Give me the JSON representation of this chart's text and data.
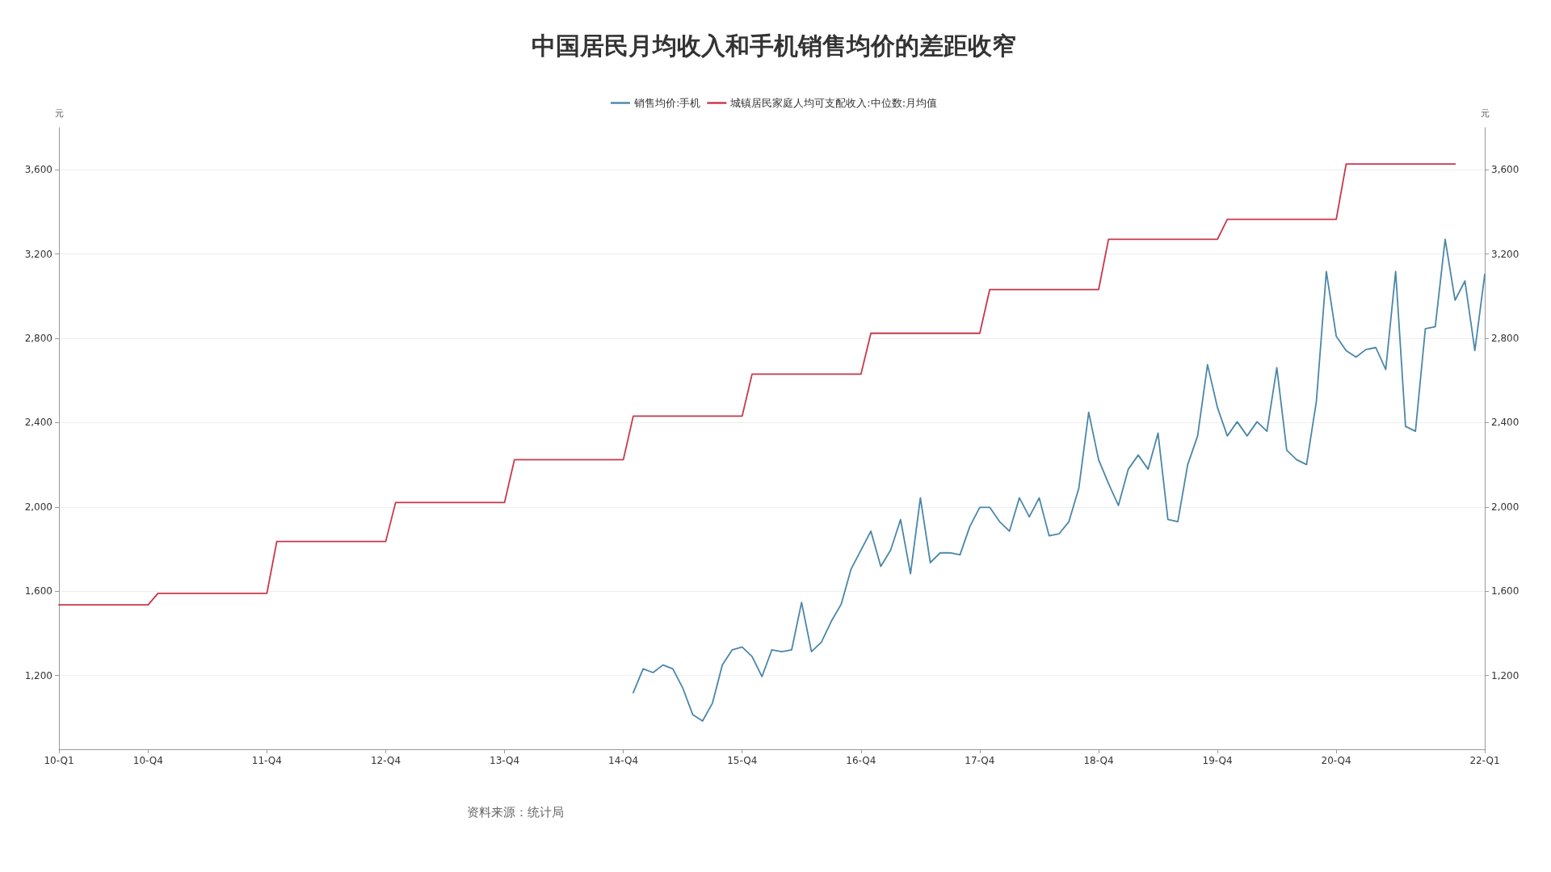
{
  "chart_data": {
    "type": "line",
    "title": "中国居民月均收入和手机销售均价的差距收窄",
    "ylabel": "元",
    "y2label": "元",
    "categories": [
      "10-Q1",
      null,
      null,
      null,
      null,
      null,
      null,
      null,
      null,
      "10-Q4",
      null,
      null,
      null,
      null,
      null,
      null,
      null,
      null,
      null,
      null,
      null,
      "11-Q4",
      null,
      null,
      null,
      null,
      null,
      null,
      null,
      null,
      null,
      null,
      null,
      "12-Q4",
      null,
      null,
      null,
      null,
      null,
      null,
      null,
      null,
      null,
      null,
      null,
      "13-Q4",
      null,
      null,
      null,
      null,
      null,
      null,
      null,
      null,
      null,
      null,
      null,
      "14-Q4",
      null,
      null,
      null,
      null,
      null,
      null,
      null,
      null,
      null,
      null,
      null,
      "15-Q4",
      null,
      null,
      null,
      null,
      null,
      null,
      null,
      null,
      null,
      null,
      null,
      "16-Q4",
      null,
      null,
      null,
      null,
      null,
      null,
      null,
      null,
      null,
      null,
      null,
      "17-Q4",
      null,
      null,
      null,
      null,
      null,
      null,
      null,
      null,
      null,
      null,
      null,
      "18-Q4",
      null,
      null,
      null,
      null,
      null,
      null,
      null,
      null,
      null,
      null,
      null,
      "19-Q4",
      null,
      null,
      null,
      null,
      null,
      null,
      null,
      null,
      null,
      null,
      null,
      "20-Q4",
      null,
      null,
      null,
      null,
      null,
      null,
      null,
      null,
      null,
      null,
      null,
      null,
      null,
      null,
      "22-Q1"
    ],
    "ylim": [
      850,
      3800
    ],
    "yticks": [
      {
        "value": 1200,
        "label": "1,200"
      },
      {
        "value": 1600,
        "label": "1,600"
      },
      {
        "value": 2000,
        "label": "2,000"
      },
      {
        "value": 2400,
        "label": "2,400"
      },
      {
        "value": 2800,
        "label": "2,800"
      },
      {
        "value": 3200,
        "label": "3,200"
      },
      {
        "value": 3600,
        "label": "3,600"
      }
    ],
    "y2lim": [
      850,
      3800
    ],
    "y2ticks": [
      {
        "value": 1200,
        "label": "1,200"
      },
      {
        "value": 1600,
        "label": "1,600"
      },
      {
        "value": 2000,
        "label": "2,000"
      },
      {
        "value": 2400,
        "label": "2,400"
      },
      {
        "value": 2800,
        "label": "2,800"
      },
      {
        "value": 3200,
        "label": "3,200"
      },
      {
        "value": 3600,
        "label": "3,600"
      }
    ],
    "grid": "y",
    "legend": "top",
    "marker": "none",
    "line_style": "solid",
    "annotations": [
      "资料来源：统计局"
    ],
    "series": [
      {
        "name": "销售均价:手机",
        "color": "#4a87a8",
        "values": [
          null,
          null,
          null,
          null,
          null,
          null,
          null,
          null,
          null,
          null,
          null,
          null,
          null,
          null,
          null,
          null,
          null,
          null,
          null,
          null,
          null,
          null,
          null,
          null,
          null,
          null,
          null,
          null,
          null,
          null,
          null,
          null,
          null,
          null,
          null,
          null,
          null,
          null,
          null,
          null,
          null,
          null,
          null,
          null,
          null,
          null,
          null,
          null,
          null,
          null,
          null,
          null,
          null,
          null,
          null,
          null,
          null,
          null,
          1119,
          1232,
          1214,
          1250,
          1232,
          1141,
          1015,
          984,
          1069,
          1250,
          1322,
          1335,
          1290,
          1195,
          1322,
          1313,
          1322,
          1547,
          1313,
          1358,
          1457,
          1538,
          1705,
          1795,
          1885,
          1718,
          1795,
          1940,
          1683,
          2043,
          1736,
          1782,
          1782,
          1773,
          1908,
          1998,
          1998,
          1930,
          1885,
          2043,
          1953,
          2043,
          1863,
          1872,
          1930,
          2088,
          2449,
          2224,
          2111,
          2007,
          2179,
          2246,
          2179,
          2350,
          1940,
          1930,
          2201,
          2337,
          2675,
          2472,
          2337,
          2404,
          2337,
          2404,
          2359,
          2661,
          2269,
          2224,
          2201,
          2503,
          3117,
          2810,
          2742,
          2711,
          2747,
          2756,
          2652,
          3117,
          2382,
          2359,
          2846,
          2855,
          3270,
          2981,
          3072,
          2742,
          3103
        ]
      },
      {
        "name": "城镇居民家庭人均可支配收入:中位数:月均值",
        "color": "#c8364a",
        "values": [
          1535,
          1535,
          1535,
          1535,
          1535,
          1535,
          1535,
          1535,
          1535,
          1535,
          1590,
          1590,
          1590,
          1590,
          1590,
          1590,
          1590,
          1590,
          1590,
          1590,
          1590,
          1590,
          1836,
          1836,
          1836,
          1836,
          1836,
          1836,
          1836,
          1836,
          1836,
          1836,
          1836,
          1836,
          2021,
          2021,
          2021,
          2021,
          2021,
          2021,
          2021,
          2021,
          2021,
          2021,
          2021,
          2021,
          2224,
          2224,
          2224,
          2224,
          2224,
          2224,
          2224,
          2224,
          2224,
          2224,
          2224,
          2224,
          2431,
          2431,
          2431,
          2431,
          2431,
          2431,
          2431,
          2431,
          2431,
          2431,
          2431,
          2431,
          2630,
          2630,
          2630,
          2630,
          2630,
          2630,
          2630,
          2630,
          2630,
          2630,
          2630,
          2630,
          2824,
          2824,
          2824,
          2824,
          2824,
          2824,
          2824,
          2824,
          2824,
          2824,
          2824,
          2824,
          3031,
          3031,
          3031,
          3031,
          3031,
          3031,
          3031,
          3031,
          3031,
          3031,
          3031,
          3031,
          3270,
          3270,
          3270,
          3270,
          3270,
          3270,
          3270,
          3270,
          3270,
          3270,
          3270,
          3270,
          3365,
          3365,
          3365,
          3365,
          3365,
          3365,
          3365,
          3365,
          3365,
          3365,
          3365,
          3365,
          3627,
          3627,
          3627,
          3627,
          3627,
          3627,
          3627,
          3627,
          3627,
          3627,
          3627,
          3627,
          null,
          null,
          null
        ]
      }
    ]
  }
}
